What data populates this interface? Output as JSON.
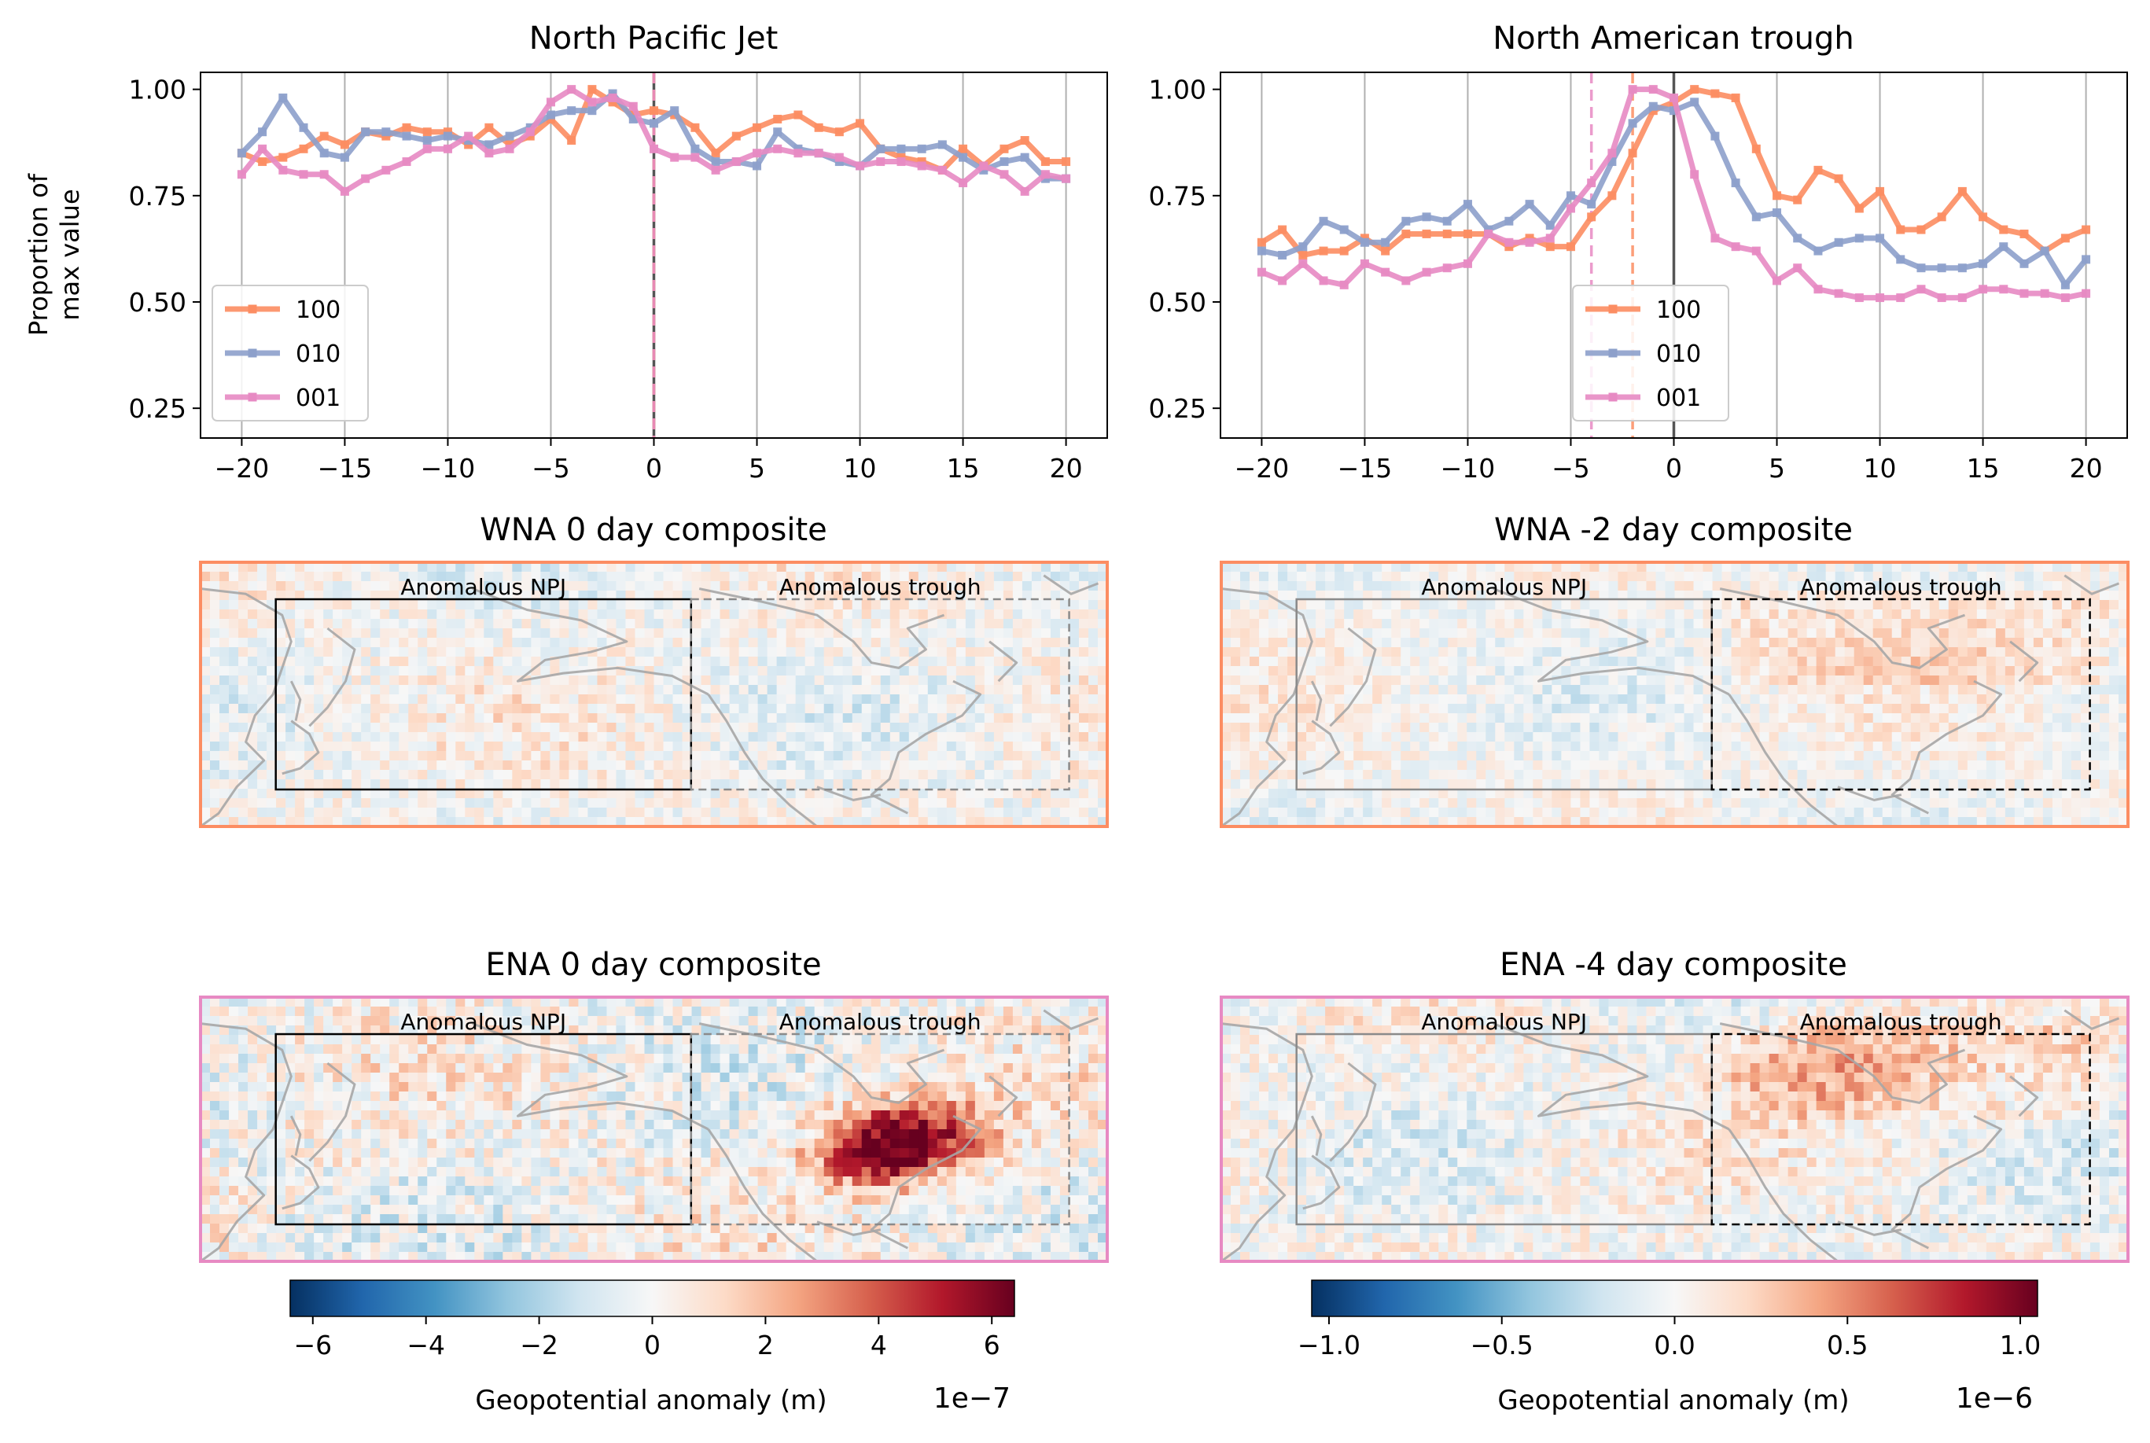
{
  "legend_labels": [
    "100",
    "010",
    "001"
  ],
  "colors": {
    "s100": "#fc8d62",
    "s010": "#8da0cb",
    "s001": "#e78ac3",
    "box_solid": "#000000",
    "box_dashed": "#7f7f7f"
  },
  "chart_data": [
    {
      "type": "line",
      "title": "North Pacific Jet",
      "ylabel_line1": "Proportion of",
      "ylabel_line2": "max value",
      "xlim": [
        -22,
        22
      ],
      "ylim": [
        0.18,
        1.04
      ],
      "xticks": [
        -20,
        -15,
        -10,
        -5,
        0,
        5,
        10,
        15,
        20
      ],
      "xtick_labels": [
        "−20",
        "−15",
        "−10",
        "−5",
        "0",
        "5",
        "10",
        "15",
        "20"
      ],
      "yticks": [
        0.25,
        0.5,
        0.75,
        1.0
      ],
      "ytick_labels": [
        "0.25",
        "0.50",
        "0.75",
        "1.00"
      ],
      "grid": "vertical",
      "legend_position": "lower-left",
      "x": [
        -20,
        -19,
        -18,
        -17,
        -16,
        -15,
        -14,
        -13,
        -12,
        -11,
        -10,
        -9,
        -8,
        -7,
        -6,
        -5,
        -4,
        -3,
        -2,
        -1,
        0,
        1,
        2,
        3,
        4,
        5,
        6,
        7,
        8,
        9,
        10,
        11,
        12,
        13,
        14,
        15,
        16,
        17,
        18,
        19,
        20
      ],
      "series": [
        {
          "name": "100",
          "values": [
            0.85,
            0.83,
            0.84,
            0.86,
            0.89,
            0.87,
            0.9,
            0.89,
            0.91,
            0.9,
            0.9,
            0.87,
            0.91,
            0.87,
            0.89,
            0.93,
            0.88,
            1.0,
            0.97,
            0.94,
            0.95,
            0.94,
            0.91,
            0.85,
            0.89,
            0.91,
            0.93,
            0.94,
            0.91,
            0.9,
            0.92,
            0.86,
            0.84,
            0.83,
            0.81,
            0.86,
            0.82,
            0.86,
            0.88,
            0.83,
            0.83
          ]
        },
        {
          "name": "010",
          "values": [
            0.85,
            0.9,
            0.98,
            0.91,
            0.85,
            0.84,
            0.9,
            0.9,
            0.89,
            0.88,
            0.89,
            0.88,
            0.87,
            0.89,
            0.91,
            0.94,
            0.95,
            0.95,
            0.99,
            0.93,
            0.92,
            0.95,
            0.86,
            0.83,
            0.83,
            0.82,
            0.9,
            0.86,
            0.85,
            0.83,
            0.82,
            0.86,
            0.86,
            0.86,
            0.87,
            0.84,
            0.81,
            0.83,
            0.84,
            0.79,
            0.79
          ]
        },
        {
          "name": "001",
          "values": [
            0.8,
            0.86,
            0.81,
            0.8,
            0.8,
            0.76,
            0.79,
            0.81,
            0.83,
            0.86,
            0.86,
            0.89,
            0.85,
            0.86,
            0.9,
            0.97,
            1.0,
            0.97,
            0.98,
            0.96,
            0.86,
            0.84,
            0.84,
            0.81,
            0.83,
            0.85,
            0.86,
            0.85,
            0.85,
            0.84,
            0.82,
            0.83,
            0.83,
            0.82,
            0.81,
            0.78,
            0.82,
            0.8,
            0.76,
            0.8,
            0.79
          ]
        }
      ],
      "vlines": [
        {
          "x": 0,
          "style": "solid",
          "color": "#555555"
        },
        {
          "x": 0,
          "style": "dashed",
          "color": "#fc8d62"
        },
        {
          "x": 0,
          "style": "dashed",
          "color": "#e78ac3"
        }
      ]
    },
    {
      "type": "line",
      "title": "North American trough",
      "xlim": [
        -22,
        22
      ],
      "ylim": [
        0.18,
        1.04
      ],
      "xticks": [
        -20,
        -15,
        -10,
        -5,
        0,
        5,
        10,
        15,
        20
      ],
      "xtick_labels": [
        "−20",
        "−15",
        "−10",
        "−5",
        "0",
        "5",
        "10",
        "15",
        "20"
      ],
      "yticks": [
        0.25,
        0.5,
        0.75,
        1.0
      ],
      "ytick_labels": [
        "0.25",
        "0.50",
        "0.75",
        "1.00"
      ],
      "grid": "vertical",
      "legend_position": "lower-center",
      "x": [
        -20,
        -19,
        -18,
        -17,
        -16,
        -15,
        -14,
        -13,
        -12,
        -11,
        -10,
        -9,
        -8,
        -7,
        -6,
        -5,
        -4,
        -3,
        -2,
        -1,
        0,
        1,
        2,
        3,
        4,
        5,
        6,
        7,
        8,
        9,
        10,
        11,
        12,
        13,
        14,
        15,
        16,
        17,
        18,
        19,
        20
      ],
      "series": [
        {
          "name": "100",
          "values": [
            0.64,
            0.67,
            0.61,
            0.62,
            0.62,
            0.65,
            0.62,
            0.66,
            0.66,
            0.66,
            0.66,
            0.66,
            0.63,
            0.65,
            0.63,
            0.63,
            0.7,
            0.75,
            0.85,
            0.95,
            0.97,
            1.0,
            0.99,
            0.98,
            0.86,
            0.75,
            0.74,
            0.81,
            0.79,
            0.72,
            0.76,
            0.67,
            0.67,
            0.7,
            0.76,
            0.7,
            0.67,
            0.66,
            0.62,
            0.65,
            0.67
          ]
        },
        {
          "name": "010",
          "values": [
            0.62,
            0.61,
            0.63,
            0.69,
            0.67,
            0.64,
            0.64,
            0.69,
            0.7,
            0.69,
            0.73,
            0.67,
            0.69,
            0.73,
            0.68,
            0.75,
            0.73,
            0.83,
            0.92,
            0.96,
            0.95,
            0.97,
            0.89,
            0.78,
            0.7,
            0.71,
            0.65,
            0.62,
            0.64,
            0.65,
            0.65,
            0.6,
            0.58,
            0.58,
            0.58,
            0.59,
            0.63,
            0.59,
            0.62,
            0.54,
            0.6
          ]
        },
        {
          "name": "001",
          "values": [
            0.57,
            0.55,
            0.59,
            0.55,
            0.54,
            0.59,
            0.57,
            0.55,
            0.57,
            0.58,
            0.59,
            0.66,
            0.64,
            0.64,
            0.65,
            0.72,
            0.78,
            0.85,
            1.0,
            1.0,
            0.98,
            0.8,
            0.65,
            0.63,
            0.62,
            0.55,
            0.58,
            0.53,
            0.52,
            0.51,
            0.51,
            0.51,
            0.53,
            0.51,
            0.51,
            0.53,
            0.53,
            0.52,
            0.52,
            0.51,
            0.52
          ]
        }
      ],
      "vlines": [
        {
          "x": 0,
          "style": "solid",
          "color": "#555555"
        },
        {
          "x": -2,
          "style": "dashed",
          "color": "#fc8d62"
        },
        {
          "x": -4,
          "style": "dashed",
          "color": "#e78ac3"
        }
      ]
    },
    {
      "type": "heatmap",
      "title": "WNA 0 day composite",
      "border_color": "#fc8d62",
      "box_labels": [
        "Anomalous NPJ",
        "Anomalous trough"
      ],
      "emphasis": "npj",
      "intensity": 0.18,
      "blobs": []
    },
    {
      "type": "heatmap",
      "title": "WNA -2 day composite",
      "border_color": "#fc8d62",
      "box_labels": [
        "Anomalous NPJ",
        "Anomalous trough"
      ],
      "emphasis": "trough",
      "intensity": 0.15,
      "blobs": []
    },
    {
      "type": "heatmap",
      "title": "ENA 0 day composite",
      "border_color": "#e78ac3",
      "box_labels": [
        "Anomalous NPJ",
        "Anomalous trough"
      ],
      "emphasis": "npj",
      "intensity": 0.25,
      "blobs": [
        {
          "lon": 0.78,
          "lat": 0.52,
          "amp": 0.95,
          "r": 0.06
        },
        {
          "lon": 0.74,
          "lat": 0.63,
          "amp": 0.5,
          "r": 0.05
        }
      ]
    },
    {
      "type": "heatmap",
      "title": "ENA -4 day composite",
      "border_color": "#e78ac3",
      "box_labels": [
        "Anomalous NPJ",
        "Anomalous trough"
      ],
      "emphasis": "trough",
      "intensity": 0.2,
      "blobs": [
        {
          "lon": 0.68,
          "lat": 0.25,
          "amp": 0.3,
          "r": 0.08
        }
      ]
    },
    {
      "type": "colorbar",
      "label": "Geopotential anomaly (m)",
      "exponent": "1e−7",
      "range": [
        -6.4,
        6.4
      ],
      "ticks": [
        -6,
        -4,
        -2,
        0,
        2,
        4,
        6
      ],
      "tick_labels": [
        "−6",
        "−4",
        "−2",
        "0",
        "2",
        "4",
        "6"
      ]
    },
    {
      "type": "colorbar",
      "label": "Geopotential anomaly (m)",
      "exponent": "1e−6",
      "range": [
        -1.05,
        1.05
      ],
      "ticks": [
        -1.0,
        -0.5,
        0.0,
        0.5,
        1.0
      ],
      "tick_labels": [
        "−1.0",
        "−0.5",
        "0.0",
        "0.5",
        "1.0"
      ]
    }
  ]
}
